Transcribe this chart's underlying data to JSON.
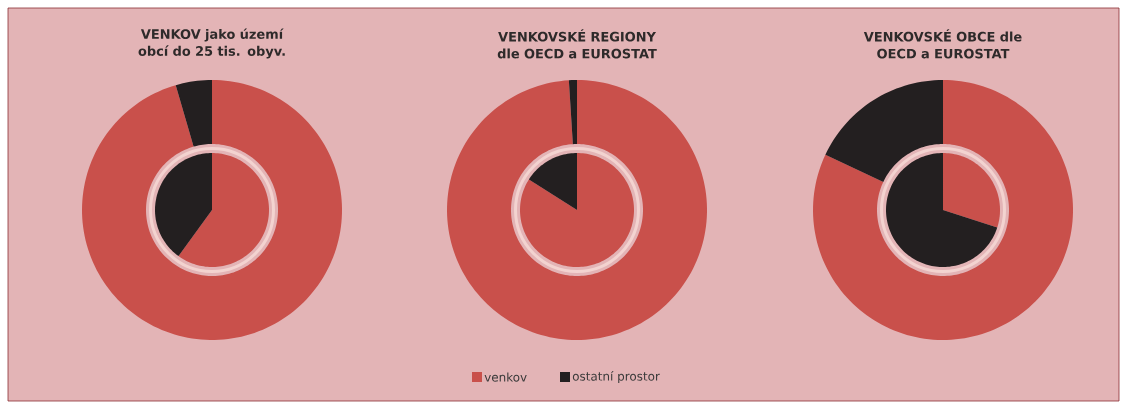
{
  "chart_data": [
    {
      "type": "donut",
      "title": "VENKOV jako území obcí do 25 tis. obyv.",
      "categories": [
        null,
        null
      ],
      "colors": [
        "#c9504b",
        "#231f20"
      ],
      "series": [
        {
          "values": [
            60,
            40
          ]
        },
        {
          "values": [
            95.5,
            4.5
          ]
        }
      ]
    },
    {
      "type": "donut",
      "title": "VENKOVSKÉ REGIONY dle OECD a EUROSTAT",
      "categories": [
        "venkov",
        "ostatní prostor"
      ],
      "colors": [
        "#c9504b",
        "#231f20"
      ],
      "legend": "bottom",
      "series": [
        {
          "values": [
            84,
            16
          ]
        },
        {
          "values": [
            99,
            1
          ]
        }
      ]
    },
    {
      "type": "donut",
      "title": "VENKOVSKÉ OBCE dle OECD a EUROSTAT",
      "categories": [
        null,
        null
      ],
      "colors": [
        "#c9504b",
        "#231f20"
      ],
      "series": [
        {
          "values": [
            30,
            70
          ]
        },
        {
          "values": [
            82,
            18
          ]
        }
      ]
    }
  ]
}
